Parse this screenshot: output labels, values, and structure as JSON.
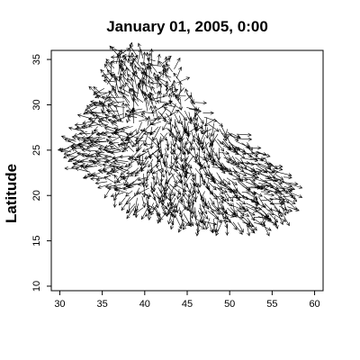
{
  "chart_data": {
    "type": "quiver",
    "title": "January 01, 2005, 0:00",
    "xlabel": "",
    "ylabel": "Latitude",
    "xlim": [
      29,
      61
    ],
    "ylim": [
      9.5,
      36
    ],
    "xticks": [
      30,
      35,
      40,
      45,
      50,
      55,
      60
    ],
    "yticks": [
      10,
      15,
      20,
      25,
      30,
      35
    ],
    "grid": false,
    "legend": "none",
    "arrow_color": "#000000",
    "domain_outline_lonlat": [
      [
        36.5,
        35.8
      ],
      [
        38.5,
        35.6
      ],
      [
        41.0,
        35.0
      ],
      [
        43.5,
        34.0
      ],
      [
        45.0,
        32.0
      ],
      [
        47.0,
        29.5
      ],
      [
        49.0,
        28.0
      ],
      [
        51.5,
        26.5
      ],
      [
        54.0,
        24.5
      ],
      [
        56.0,
        22.8
      ],
      [
        57.5,
        20.5
      ],
      [
        56.5,
        18.0
      ],
      [
        53.5,
        16.6
      ],
      [
        50.0,
        16.8
      ],
      [
        47.5,
        16.5
      ],
      [
        45.5,
        17.0
      ],
      [
        43.0,
        17.5
      ],
      [
        40.5,
        18.0
      ],
      [
        37.5,
        19.5
      ],
      [
        35.0,
        21.5
      ],
      [
        32.0,
        23.0
      ],
      [
        31.0,
        25.5
      ],
      [
        33.0,
        28.0
      ],
      [
        34.5,
        30.5
      ],
      [
        35.5,
        33.0
      ]
    ],
    "flow_regions": [
      {
        "lon_range": [
          31,
          40
        ],
        "lat_range": [
          21,
          28
        ],
        "mean_u": -2.2,
        "mean_v": 0.2
      },
      {
        "lon_range": [
          36,
          44
        ],
        "lat_range": [
          28,
          36
        ],
        "mean_u": -0.6,
        "mean_v": 1.6
      },
      {
        "lon_range": [
          40,
          48
        ],
        "lat_range": [
          22,
          30
        ],
        "mean_u": 0.3,
        "mean_v": -1.8
      },
      {
        "lon_range": [
          47,
          57
        ],
        "lat_range": [
          18,
          27
        ],
        "mean_u": 2.0,
        "mean_v": -0.9
      },
      {
        "lon_range": [
          38,
          48
        ],
        "lat_range": [
          17,
          22
        ],
        "mean_u": 0.2,
        "mean_v": -1.6
      }
    ]
  }
}
